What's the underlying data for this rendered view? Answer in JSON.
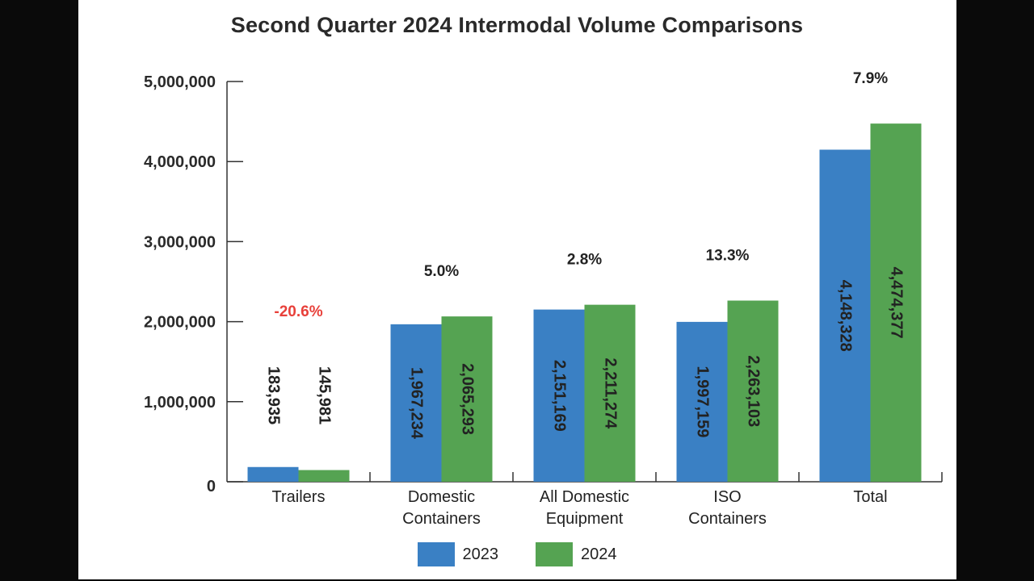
{
  "chart_data": {
    "type": "bar",
    "title": "Second Quarter 2024 Intermodal Volume Comparisons",
    "categories": [
      [
        "Trailers"
      ],
      [
        "Domestic",
        "Containers"
      ],
      [
        "All Domestic",
        "Equipment"
      ],
      [
        "ISO",
        "Containers"
      ],
      [
        "Total"
      ]
    ],
    "series": [
      {
        "name": "2023",
        "color": "#3a80c4",
        "values": [
          183935,
          1967234,
          2151169,
          1997159,
          4148328
        ],
        "labels": [
          "183,935",
          "1,967,234",
          "2,151,169",
          "1,997,159",
          "4,148,328"
        ]
      },
      {
        "name": "2024",
        "color": "#55a352",
        "values": [
          145981,
          2065293,
          2211274,
          2263103,
          4474377
        ],
        "labels": [
          "145,981",
          "2,065,293",
          "2,211,274",
          "2,263,103",
          "4,474,377"
        ]
      }
    ],
    "changes": [
      {
        "text": "-20.6%",
        "color": "#e8403a"
      },
      {
        "text": "5.0%",
        "color": "#222222"
      },
      {
        "text": "2.8%",
        "color": "#222222"
      },
      {
        "text": "13.3%",
        "color": "#222222"
      },
      {
        "text": "7.9%",
        "color": "#222222"
      }
    ],
    "yticks": [
      {
        "value": 0,
        "label": "0"
      },
      {
        "value": 1000000,
        "label": "1,000,000"
      },
      {
        "value": 2000000,
        "label": "2,000,000"
      },
      {
        "value": 3000000,
        "label": "3,000,000"
      },
      {
        "value": 4000000,
        "label": "4,000,000"
      },
      {
        "value": 5000000,
        "label": "5,000,000"
      }
    ],
    "ylim": [
      0,
      5000000
    ],
    "grid": false,
    "legend_position": "bottom-center"
  }
}
